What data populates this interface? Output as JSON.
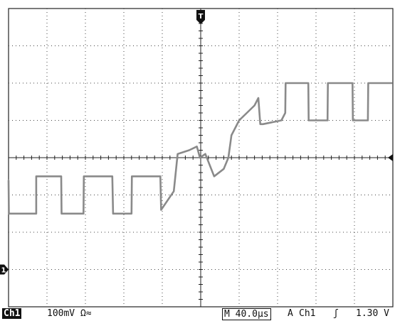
{
  "chart_data": {
    "type": "line",
    "title": "",
    "xlabel": "",
    "ylabel": "",
    "x_unit": "div",
    "y_unit": "div",
    "xlim": [
      0,
      10
    ],
    "ylim": [
      -4,
      4
    ],
    "grid": true,
    "series": [
      {
        "color": "#8a8a8a",
        "x": [
          0.0,
          0.01,
          0.72,
          0.72,
          1.37,
          1.38,
          1.95,
          1.96,
          2.7,
          2.72,
          3.2,
          3.21,
          3.95,
          3.97,
          4.3,
          4.4,
          4.7,
          4.9,
          4.98,
          5.12,
          5.35,
          5.6,
          5.72,
          5.8,
          6.0,
          6.4,
          6.5,
          6.55,
          6.62,
          7.1,
          7.2,
          7.21,
          7.8,
          7.81,
          8.3,
          8.31,
          8.95,
          8.96,
          9.35,
          9.36,
          9.98
        ],
        "y": [
          -0.6,
          -1.5,
          -1.5,
          -0.5,
          -0.5,
          -1.5,
          -1.5,
          -0.5,
          -0.5,
          -1.5,
          -1.5,
          -0.5,
          -0.5,
          -1.4,
          -0.9,
          0.1,
          0.2,
          0.3,
          0.0,
          0.1,
          -0.5,
          -0.3,
          0.0,
          0.6,
          1.0,
          1.4,
          1.6,
          0.9,
          0.9,
          1.0,
          1.2,
          2.0,
          2.0,
          1.0,
          1.0,
          2.0,
          2.0,
          1.0,
          1.0,
          2.0,
          2.0
        ]
      }
    ]
  },
  "markers": {
    "trigger_position": "T",
    "ground_level": "1",
    "ground_level_div": -3.0,
    "trigger_level_div": 0
  },
  "status_bar": {
    "channel": "Ch1",
    "volts_per_div": "100mV Ω≈",
    "timebase": "M 40.0µs",
    "trigger_mode": "A",
    "trigger_source": "Ch1",
    "trigger_slope": "ʃ",
    "trigger_level": "1.30 V"
  },
  "colors": {
    "grid": "#444444",
    "trace": "#8a8a8a",
    "background": "#ffffff"
  }
}
